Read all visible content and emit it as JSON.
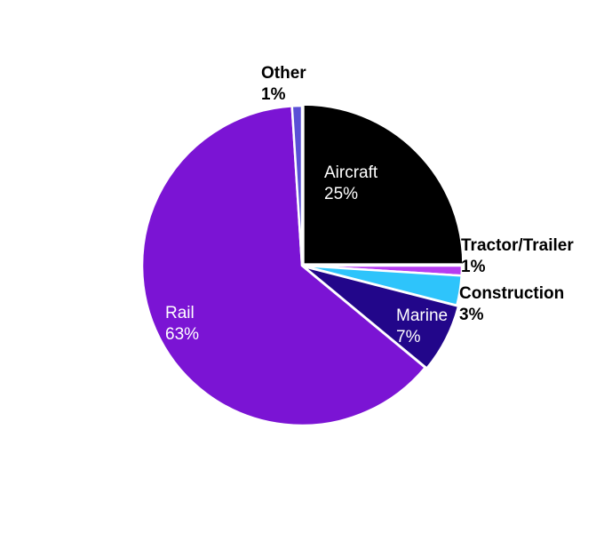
{
  "chart_data": {
    "type": "pie",
    "title": "",
    "start_angle_deg": 0,
    "direction": "clockwise",
    "slices": [
      {
        "label": "Aircraft",
        "value": 25,
        "pct_label": "25%",
        "color": "#000000",
        "label_position": "inside",
        "label_color": "#ffffff"
      },
      {
        "label": "Tractor/Trailer",
        "value": 1,
        "pct_label": "1%",
        "color": "#b63cf0",
        "label_position": "outside",
        "label_color": "#000000"
      },
      {
        "label": "Construction",
        "value": 3,
        "pct_label": "3%",
        "color": "#2ec4fb",
        "label_position": "outside",
        "label_color": "#000000"
      },
      {
        "label": "Marine",
        "value": 7,
        "pct_label": "7%",
        "color": "#22068a",
        "label_position": "inside",
        "label_color": "#ffffff"
      },
      {
        "label": "Rail",
        "value": 63,
        "pct_label": "63%",
        "color": "#7b14d4",
        "label_position": "inside",
        "label_color": "#ffffff"
      },
      {
        "label": "Other",
        "value": 1,
        "pct_label": "1%",
        "color": "#5a4fd6",
        "label_position": "outside",
        "label_color": "#000000"
      }
    ]
  }
}
